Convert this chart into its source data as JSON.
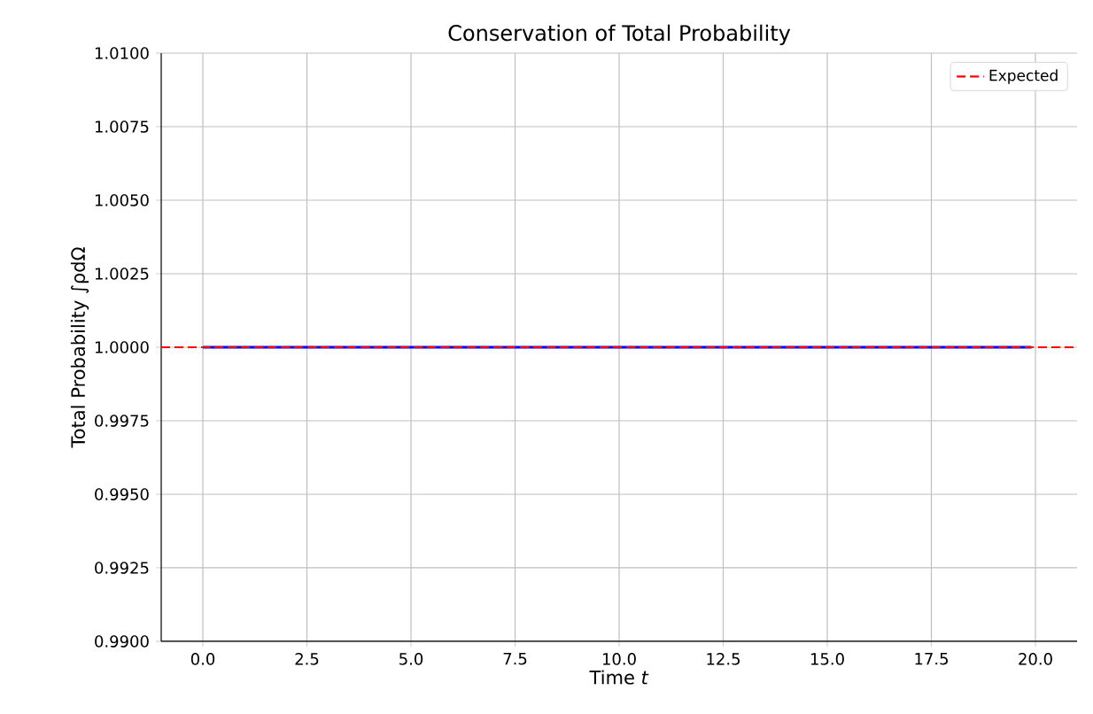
{
  "chart_data": {
    "type": "line",
    "title": "Conservation of Total Probability",
    "xlabel": "Time *t*",
    "ylabel": "Total Probability ∫ρdΩ",
    "series": [
      {
        "color": "#0000ff",
        "x": [
          0,
          19.9
        ],
        "values": [
          1.0,
          1.0
        ]
      }
    ],
    "ref_lines": [
      {
        "axis": "y",
        "value": 1.0,
        "label": "Expected",
        "color": "#ff0000",
        "line_style": "dashed"
      }
    ],
    "xlim": [
      -1,
      21
    ],
    "xticks": [
      {
        "value": 0,
        "label": "0.0"
      },
      {
        "value": 2.5,
        "label": "2.5"
      },
      {
        "value": 5,
        "label": "5.0"
      },
      {
        "value": 7.5,
        "label": "7.5"
      },
      {
        "value": 10,
        "label": "10.0"
      },
      {
        "value": 12.5,
        "label": "12.5"
      },
      {
        "value": 15,
        "label": "15.0"
      },
      {
        "value": 17.5,
        "label": "17.5"
      },
      {
        "value": 20,
        "label": "20.0"
      }
    ],
    "ylim": [
      0.99,
      1.01
    ],
    "yticks": [
      {
        "value": 0.99,
        "label": "0.9900"
      },
      {
        "value": 0.9925,
        "label": "0.9925"
      },
      {
        "value": 0.995,
        "label": "0.9950"
      },
      {
        "value": 0.9975,
        "label": "0.9975"
      },
      {
        "value": 1.0,
        "label": "1.0000"
      },
      {
        "value": 1.0025,
        "label": "1.0025"
      },
      {
        "value": 1.005,
        "label": "1.0050"
      },
      {
        "value": 1.0075,
        "label": "1.0075"
      },
      {
        "value": 1.01,
        "label": "1.0100"
      }
    ],
    "grid": true,
    "legend": "top right",
    "marker": "none",
    "line_style": "solid"
  }
}
